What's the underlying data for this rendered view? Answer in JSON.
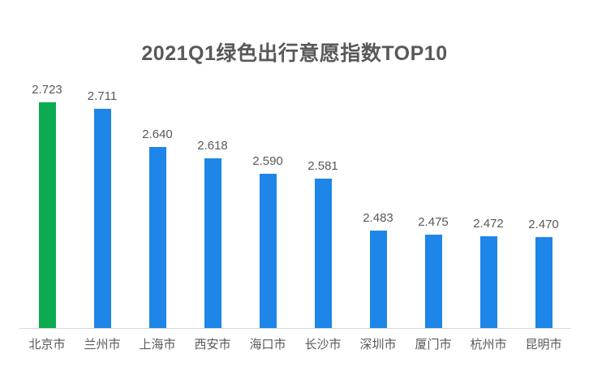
{
  "title": "2021Q1绿色出行意愿指数TOP10",
  "colors": {
    "background": "#ffffff",
    "title_text": "#595959",
    "label_text": "#595959",
    "axis_line": "#d9d9d9",
    "bar_default": "#1e86e8",
    "bar_highlight": "#0cab52"
  },
  "chart_data": {
    "type": "bar",
    "title": "2021Q1绿色出行意愿指数TOP10",
    "categories": [
      "北京市",
      "兰州市",
      "上海市",
      "西安市",
      "海口市",
      "长沙市",
      "深圳市",
      "厦门市",
      "杭州市",
      "昆明市"
    ],
    "values": [
      2.723,
      2.711,
      2.64,
      2.618,
      2.59,
      2.581,
      2.483,
      2.475,
      2.472,
      2.47
    ],
    "value_labels": [
      "2.723",
      "2.711",
      "2.640",
      "2.618",
      "2.590",
      "2.581",
      "2.483",
      "2.475",
      "2.472",
      "2.470"
    ],
    "highlight_index": 0,
    "xlabel": "",
    "ylabel": "",
    "ylim": [
      2.3,
      2.76
    ],
    "grid": false,
    "legend": false,
    "data_labels": true,
    "x_axis_line": true
  }
}
